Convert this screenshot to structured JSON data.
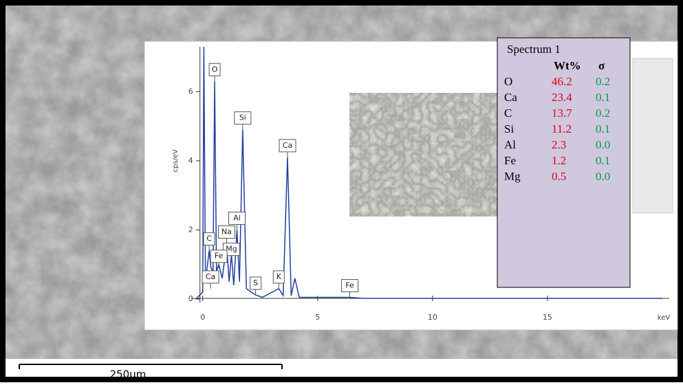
{
  "chart_data": {
    "type": "line",
    "x": [
      -0.3,
      0,
      0.05,
      0.12,
      0.28,
      0.36,
      0.45,
      0.52,
      0.6,
      0.7,
      0.85,
      1.04,
      1.15,
      1.25,
      1.35,
      1.49,
      1.6,
      1.74,
      1.9,
      2.3,
      2.6,
      3.31,
      3.5,
      3.69,
      3.85,
      4.01,
      4.2,
      6.4,
      7,
      20
    ],
    "values": [
      0,
      0.2,
      7.3,
      0.5,
      1.4,
      0.9,
      0.8,
      6.3,
      0.8,
      1.0,
      0.6,
      1.6,
      0.5,
      1.3,
      0.4,
      2.0,
      0.5,
      4.9,
      0.3,
      0.12,
      0.05,
      0.3,
      0.1,
      4.1,
      0.1,
      0.6,
      0.05,
      0.05,
      0.02,
      0.02
    ],
    "color": "#1f3fa0",
    "xlim": [
      -0.5,
      20.3
    ],
    "ylim": [
      -0.1,
      7.3
    ],
    "xticks": [
      0,
      5,
      10,
      15
    ],
    "yticks": [
      0,
      2,
      4,
      6
    ],
    "x_label": "keV",
    "y_label": "cps/eV",
    "peak_labels": [
      {
        "label": "O",
        "x": 0.52,
        "y": 6.3
      },
      {
        "label": "Si",
        "x": 1.74,
        "y": 4.9
      },
      {
        "label": "Ca",
        "x": 3.69,
        "y": 4.1
      },
      {
        "label": "Al",
        "x": 1.49,
        "y": 2.0
      },
      {
        "label": "Na",
        "x": 1.04,
        "y": 1.6
      },
      {
        "label": "C",
        "x": 0.28,
        "y": 1.4
      },
      {
        "label": "Mg",
        "x": 1.25,
        "y": 1.1
      },
      {
        "label": "Fe",
        "x": 0.7,
        "y": 0.9
      },
      {
        "label": "Ca",
        "x": 0.34,
        "y": 0.3
      },
      {
        "label": "S",
        "x": 2.3,
        "y": 0.12
      },
      {
        "label": "K",
        "x": 3.31,
        "y": 0.3
      },
      {
        "label": "Fe",
        "x": 6.4,
        "y": 0.05
      }
    ]
  },
  "table": {
    "title": "Spectrum 1",
    "headers": [
      "Wt%",
      "σ"
    ],
    "rows": [
      [
        "O",
        "46.2",
        "0.2"
      ],
      [
        "Ca",
        "23.4",
        "0.1"
      ],
      [
        "C",
        "13.7",
        "0.2"
      ],
      [
        "Si",
        "11.2",
        "0.1"
      ],
      [
        "Al",
        "2.3",
        "0.0"
      ],
      [
        "Fe",
        "1.2",
        "0.1"
      ],
      [
        "Mg",
        "0.5",
        "0.0"
      ]
    ]
  },
  "scale_bar": "250µm"
}
